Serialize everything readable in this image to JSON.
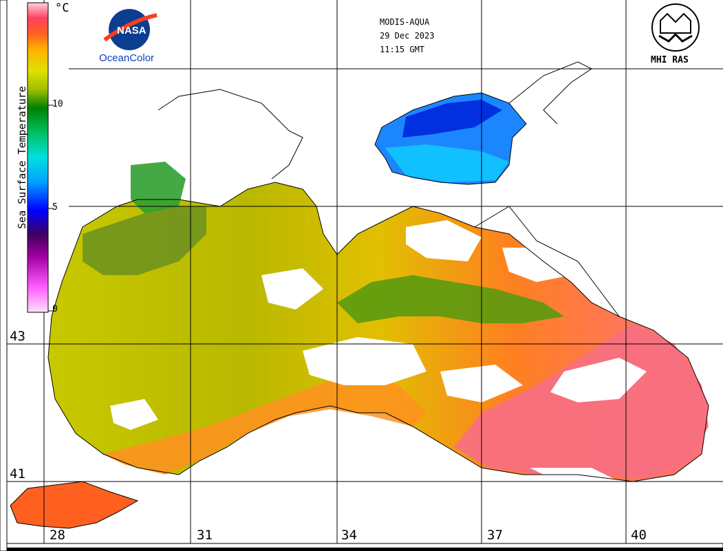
{
  "map": {
    "sensor": "MODIS-AQUA",
    "date": "29 Dec 2023",
    "time": "11:15 GMT",
    "latitudes": [
      "43",
      "41"
    ],
    "longitudes": [
      "28",
      "31",
      "34",
      "37",
      "40"
    ],
    "producer_logo": "MHI RAS",
    "brand_logo_text": "OceanColor",
    "nasa_logo_text": "NASA"
  },
  "colorbar": {
    "title": "Sea Surface Temperature",
    "unit": "°C",
    "ticks": [
      "10",
      "5",
      "0"
    ],
    "colors": [
      "#ffe0f0",
      "#ff60ff",
      "#a000a0",
      "#400060",
      "#2020a0",
      "#0000ff",
      "#00a0ff",
      "#00e0e0",
      "#00c060",
      "#008000",
      "#a0c000",
      "#e0e000",
      "#ffb000",
      "#ff6020",
      "#ff4060",
      "#ffd0d8"
    ]
  },
  "legend_icons": {
    "nasa": "nasa-meatball-icon",
    "mhi": "mhi-ras-emblem-icon"
  }
}
